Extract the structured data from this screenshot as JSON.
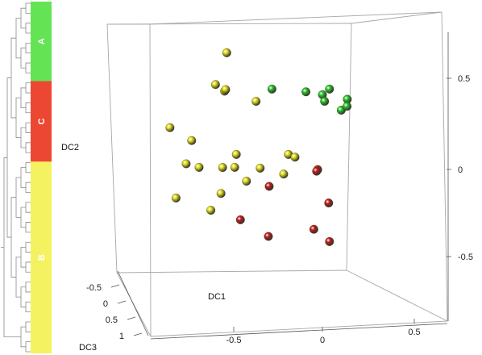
{
  "colors": {
    "group_A": "#64e354",
    "group_B": "#f5f261",
    "group_C": "#ec4733",
    "sphere_yellow": "#e1dc14",
    "sphere_green": "#24c426",
    "sphere_red": "#c71818",
    "box_line": "#a8a8a8",
    "dendrogram": "#8a8a8a"
  },
  "dendrogram": {
    "groups": [
      {
        "label": "A",
        "color": "#64e354",
        "start": 0.0,
        "end": 0.226
      },
      {
        "label": "C",
        "color": "#ec4733",
        "start": 0.226,
        "end": 0.455
      },
      {
        "label": "B",
        "color": "#f5f261",
        "start": 0.455,
        "end": 1.0
      }
    ]
  },
  "chart_data": {
    "type": "scatter",
    "dimensions": 3,
    "axes": {
      "x": {
        "label": "DC1",
        "ticks": [
          "-0.5",
          "0",
          "0.5"
        ],
        "range": [
          -1,
          1
        ]
      },
      "y": {
        "label": "DC2",
        "ticks": [
          "-0.5",
          "0",
          "0.5"
        ],
        "range": [
          -1,
          1
        ]
      },
      "z": {
        "label": "DC3",
        "ticks": [
          "-0.5",
          "0",
          "0.5",
          "1"
        ],
        "range": [
          -1,
          1
        ]
      }
    },
    "series": [
      {
        "group": "B",
        "color": "#e1dc14",
        "points": [
          [
            -0.55,
            0.8,
            -0.2
          ],
          [
            -0.66,
            0.55,
            -0.4
          ],
          [
            -0.58,
            0.52,
            -0.3
          ],
          [
            -0.6,
            0.5,
            -0.5
          ],
          [
            -0.35,
            0.45,
            -0.3
          ],
          [
            -0.95,
            0.3,
            -0.1
          ],
          [
            -0.82,
            0.18,
            -0.3
          ],
          [
            -0.48,
            0.1,
            -0.2
          ],
          [
            -0.86,
            0.02,
            -0.3
          ],
          [
            -0.78,
            -0.02,
            -0.4
          ],
          [
            -0.58,
            0.01,
            -0.2
          ],
          [
            -0.52,
            -0.02,
            -0.4
          ],
          [
            -0.32,
            -0.01,
            -0.3
          ],
          [
            -0.1,
            0.1,
            -0.2
          ],
          [
            -0.08,
            0.05,
            -0.4
          ],
          [
            -0.12,
            -0.02,
            -0.1
          ],
          [
            -0.42,
            -0.1,
            -0.3
          ],
          [
            -0.92,
            -0.2,
            -0.2
          ],
          [
            -0.62,
            -0.2,
            -0.4
          ],
          [
            -0.68,
            -0.3,
            -0.3
          ]
        ]
      },
      {
        "group": "A",
        "color": "#24c426",
        "points": [
          [
            -0.22,
            0.55,
            -0.2
          ],
          [
            0.0,
            0.5,
            -0.4
          ],
          [
            0.2,
            0.55,
            -0.2
          ],
          [
            0.12,
            0.48,
            -0.4
          ],
          [
            0.15,
            0.45,
            -0.3
          ],
          [
            0.3,
            0.42,
            -0.1
          ],
          [
            0.33,
            0.48,
            -0.2
          ],
          [
            0.3,
            0.4,
            -0.4
          ]
        ]
      },
      {
        "group": "C",
        "color": "#c71818",
        "points": [
          [
            0.1,
            -0.02,
            -0.3
          ],
          [
            0.12,
            0.0,
            -0.1
          ],
          [
            -0.24,
            -0.12,
            -0.2
          ],
          [
            0.18,
            -0.25,
            -0.3
          ],
          [
            -0.45,
            -0.35,
            -0.2
          ],
          [
            0.1,
            -0.4,
            -0.1
          ],
          [
            -0.26,
            -0.48,
            -0.3
          ],
          [
            0.2,
            -0.5,
            -0.2
          ]
        ]
      }
    ]
  }
}
